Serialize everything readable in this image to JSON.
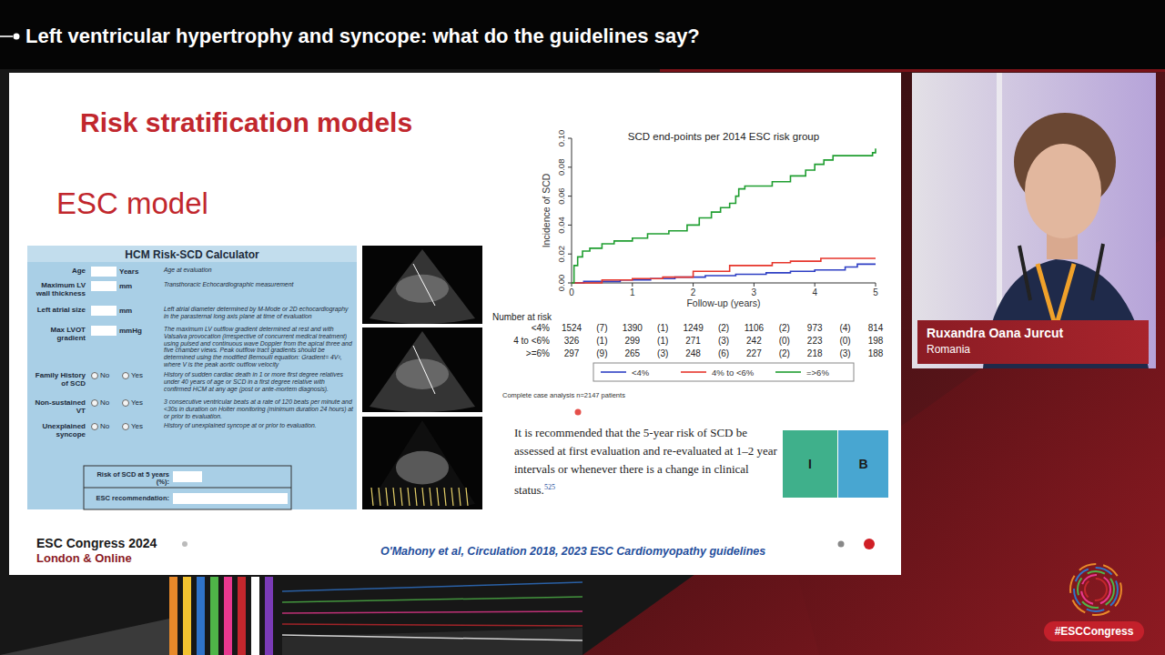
{
  "header": {
    "title": "Left ventricular hypertrophy and syncope: what do the guidelines say?"
  },
  "slide": {
    "title": "Risk stratification models",
    "subtitle": "ESC model",
    "footer": {
      "event": "ESC Congress 2024",
      "location": "London & Online",
      "reference": "O'Mahony et al, Circulation 2018, 2023 ESC Cardiomyopathy guidelines"
    }
  },
  "calculator": {
    "title": "HCM Risk-SCD Calculator",
    "fields": [
      {
        "label": "Age",
        "unit": "Years",
        "description": "Age at evaluation"
      },
      {
        "label": "Maximum LV wall thickness",
        "unit": "mm",
        "description": "Transthoracic Echocardiographic measurement"
      },
      {
        "label": "Left atrial size",
        "unit": "mm",
        "description": "Left atrial diameter determined by M-Mode or 2D echocardiography in the parasternal long axis plane at time of evaluation"
      },
      {
        "label": "Max LVOT gradient",
        "unit": "mmHg",
        "description": "The maximum LV outflow gradient determined at rest and with Valsalva provocation (irrespective of concurrent medical treatment) using pulsed and continuous wave Doppler from the apical three and five chamber views. Peak outflow tract gradients should be determined using the modified Bernoulli equation: Gradient= 4V², where V is the peak aortic outflow velocity"
      },
      {
        "label": "Family History of SCD",
        "options": [
          "No",
          "Yes"
        ],
        "description": "History of sudden cardiac death in 1 or more first degree relatives under 40 years of age or SCD in a first degree relative with confirmed HCM at any age (post or ante-mortem diagnosis)."
      },
      {
        "label": "Non-sustained VT",
        "options": [
          "No",
          "Yes"
        ],
        "description": "3 consecutive ventricular beats at a rate of 120 beats per minute and <30s in duration on Holter monitoring (minimum duration 24 hours) at or prior to evaluation."
      },
      {
        "label": "Unexplained syncope",
        "options": [
          "No",
          "Yes"
        ],
        "description": "History of unexplained syncope at or prior to evaluation."
      }
    ],
    "result": {
      "risk": "Risk of SCD at 5 years (%):",
      "recommendation": "ESC recommendation:"
    }
  },
  "chart_data": {
    "type": "line",
    "title": "SCD end-points per 2014 ESC risk group",
    "x_label": "Follow-up (years)",
    "y_label": "Incidence of SCD",
    "xlim": [
      0,
      5
    ],
    "xticks": [
      0,
      1,
      2,
      3,
      4,
      5
    ],
    "ylim": [
      0,
      0.1
    ],
    "yticks": [
      {
        "value": 0,
        "label": "0.00"
      },
      {
        "value": 0.02,
        "label": "0.02"
      },
      {
        "value": 0.04,
        "label": "0.04"
      },
      {
        "value": 0.06,
        "label": "0.06"
      },
      {
        "value": 0.08,
        "label": "0.08"
      },
      {
        "value": 0.1,
        "label": "0.10"
      }
    ],
    "grid": false,
    "legend": "bottom",
    "line_style": "steps",
    "series": [
      {
        "name": "<4%",
        "color": "#2e3fc4",
        "x": [
          0,
          0.2,
          0.8,
          1.3,
          1.7,
          2.2,
          2.7,
          3.2,
          3.6,
          4.0,
          4.5,
          4.7,
          5.0
        ],
        "values": [
          0,
          0.001,
          0.002,
          0.003,
          0.004,
          0.005,
          0.006,
          0.007,
          0.008,
          0.009,
          0.011,
          0.013,
          0.013
        ]
      },
      {
        "name": "4% to <6%",
        "color": "#e6352b",
        "x": [
          0,
          0.5,
          1.0,
          1.5,
          2.0,
          2.6,
          3.3,
          3.6,
          4.1,
          5.0
        ],
        "values": [
          0,
          0.002,
          0.003,
          0.004,
          0.008,
          0.012,
          0.014,
          0.015,
          0.017,
          0.017
        ]
      },
      {
        "name": "=>6%",
        "color": "#1f9e30",
        "x": [
          0,
          0.04,
          0.1,
          0.18,
          0.3,
          0.5,
          0.7,
          1.0,
          1.25,
          1.6,
          1.9,
          2.1,
          2.3,
          2.45,
          2.6,
          2.7,
          2.75,
          2.85,
          3.3,
          3.6,
          3.85,
          4.0,
          4.15,
          4.3,
          4.95,
          5.0
        ],
        "values": [
          0,
          0.012,
          0.018,
          0.022,
          0.024,
          0.027,
          0.029,
          0.031,
          0.034,
          0.036,
          0.04,
          0.045,
          0.049,
          0.052,
          0.055,
          0.06,
          0.065,
          0.067,
          0.07,
          0.074,
          0.078,
          0.082,
          0.085,
          0.088,
          0.09,
          0.093
        ]
      }
    ]
  },
  "risk_table": {
    "title": "Number at risk",
    "rows": [
      {
        "label": "<4%",
        "cells": [
          "1524",
          "(7)",
          "1390",
          "(1)",
          "1249",
          "(2)",
          "1106",
          "(2)",
          "973",
          "(4)",
          "814"
        ]
      },
      {
        "label": "4 to <6%",
        "cells": [
          "326",
          "(1)",
          "299",
          "(1)",
          "271",
          "(3)",
          "242",
          "(0)",
          "223",
          "(0)",
          "198"
        ]
      },
      {
        "label": ">=6%",
        "cells": [
          "297",
          "(9)",
          "265",
          "(3)",
          "248",
          "(6)",
          "227",
          "(2)",
          "218",
          "(3)",
          "188"
        ]
      }
    ]
  },
  "note": "Complete case analysis n=2147 patients",
  "recommendation": {
    "text": "It is recommended that the 5-year risk of SCD be assessed at first evaluation and re-evaluated at 1–2 year intervals or whenever there is a change in clinical status.",
    "reference": "525",
    "class": "I",
    "level": "B"
  },
  "speaker": {
    "name": "Ruxandra Oana Jurcut",
    "country": "Romania"
  },
  "hashtag": "#ESCCongress"
}
